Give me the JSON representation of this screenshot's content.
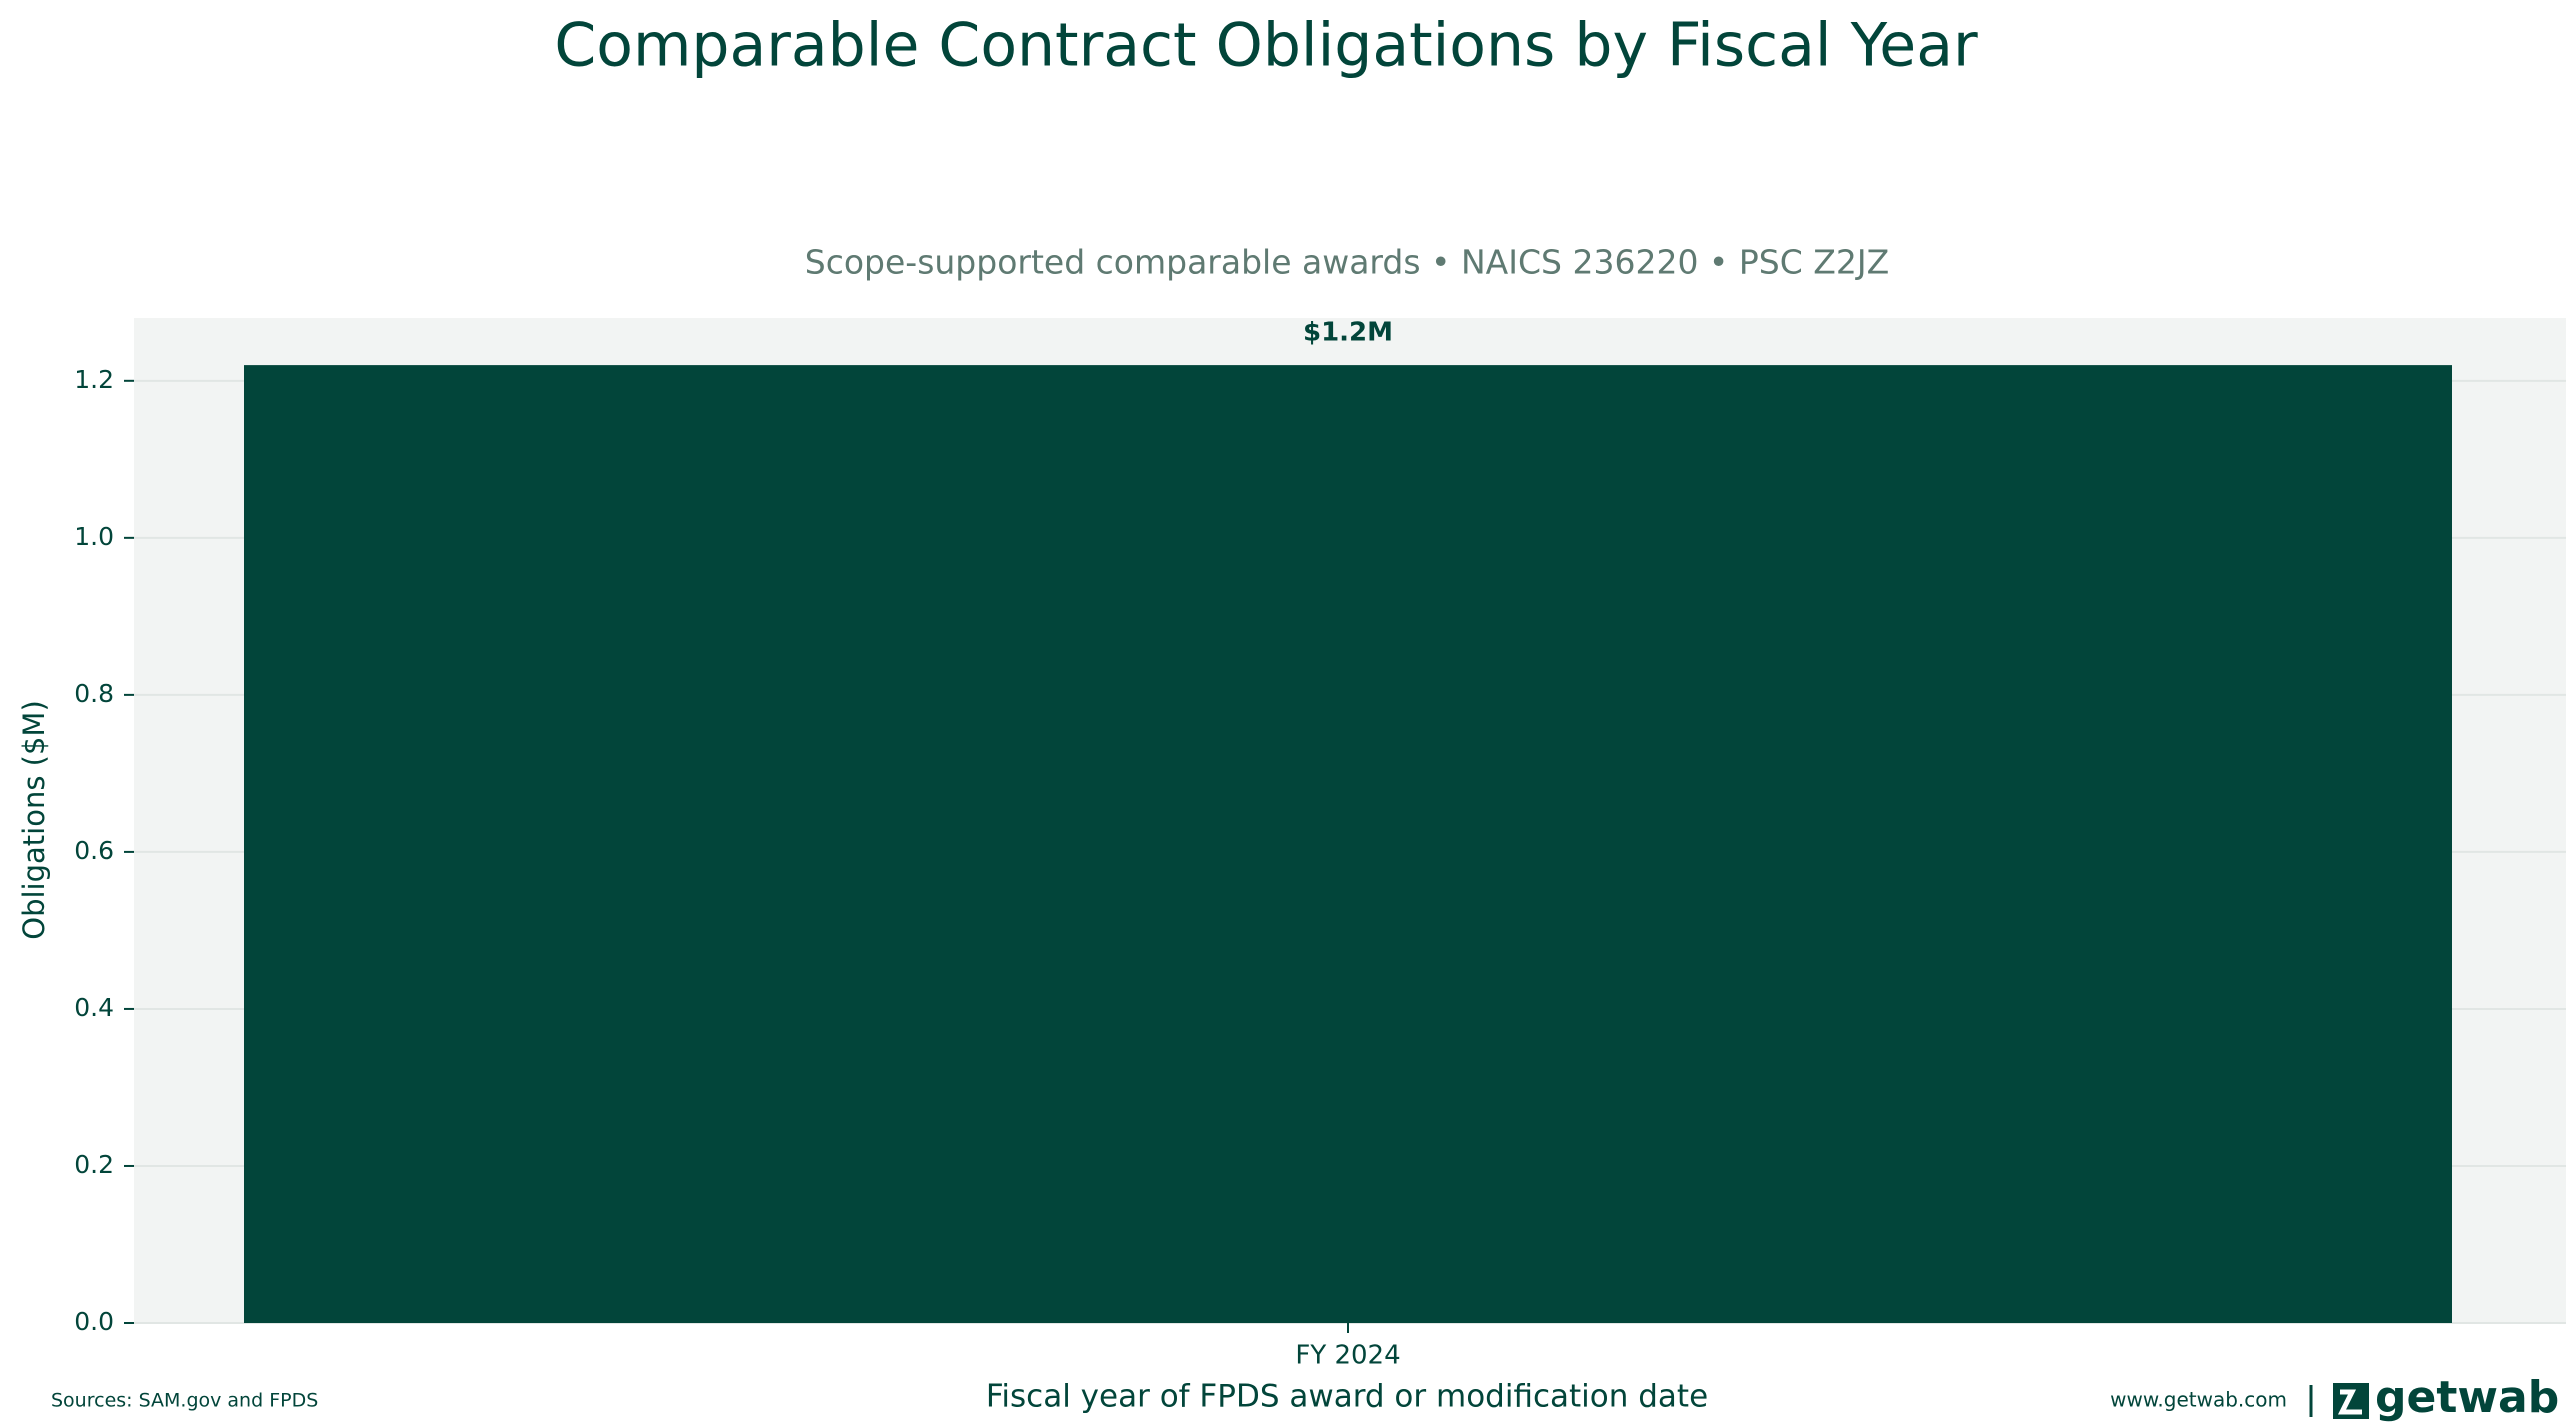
{
  "chart_data": {
    "type": "bar",
    "title": "Comparable Contract Obligations by Fiscal Year",
    "subtitle": "Scope-supported comparable awards • NAICS 236220 • PSC Z2JZ",
    "x_label": "Fiscal year of FPDS award or modification date",
    "y_label": "Obligations ($M)",
    "categories": [
      "FY 2024"
    ],
    "values": [
      1.22
    ],
    "value_labels": [
      "$1.2M"
    ],
    "color": "#02453a",
    "ylim": [
      0,
      1.28
    ],
    "yticks": [
      {
        "value": 0,
        "label": "0.0"
      },
      0.2,
      0.4,
      0.6,
      0.8,
      {
        "value": 1,
        "label": "1.0"
      },
      1.2
    ],
    "grid": true
  },
  "footer": {
    "source": "Sources: SAM.gov and FPDS",
    "website": "www.getwab.com",
    "brand": "getwab"
  }
}
